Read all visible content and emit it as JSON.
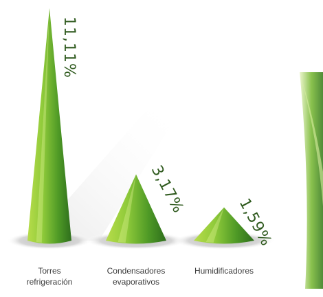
{
  "chart_data": {
    "type": "bar",
    "mark_shape": "cone",
    "categories": [
      [
        "Torres",
        "refrigeración"
      ],
      [
        "Condensadores",
        "evaporativos"
      ],
      [
        "Humidificadores"
      ]
    ],
    "values": [
      11.11,
      3.17,
      1.59
    ],
    "value_labels": [
      "11,11%",
      "3,17%",
      "1,59%"
    ],
    "title": "",
    "xlabel": "",
    "ylabel": "",
    "ylim": [
      0,
      11.11
    ],
    "grid": false,
    "legend": "none",
    "colors": {
      "cone_light": "#c4e35a",
      "cone_mid": "#6fb52c",
      "cone_dark": "#2e6e1c",
      "shadow": "#c7c7c7",
      "label_text": "#2f5a1e"
    }
  }
}
